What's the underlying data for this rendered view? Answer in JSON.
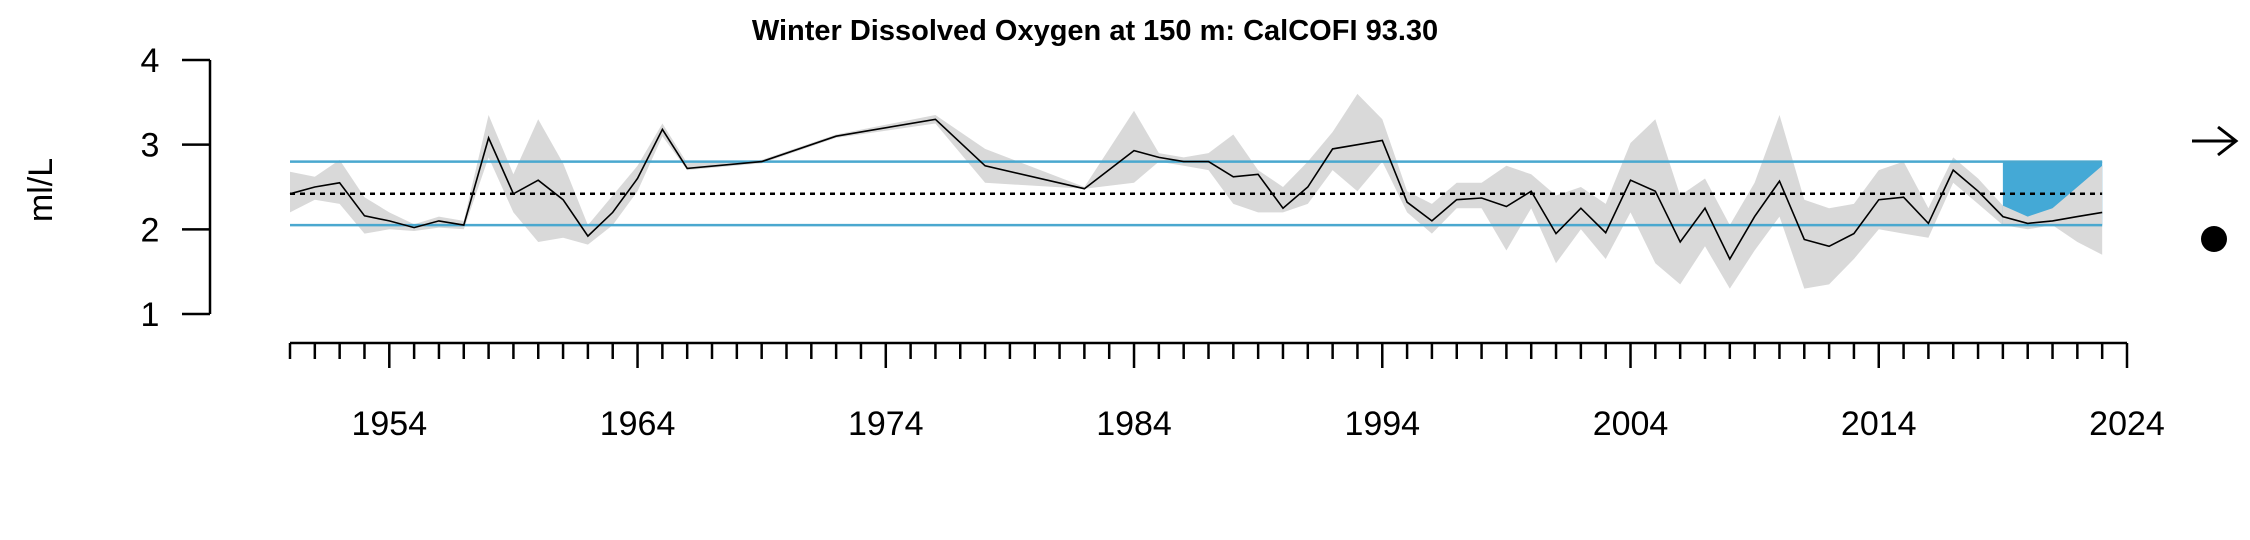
{
  "chart_data": {
    "type": "line",
    "title": "Winter Dissolved Oxygen at 150 m: CalCOFI 93.30",
    "ylabel": "ml/L",
    "xlabel": "",
    "xlim": [
      1950,
      2024
    ],
    "ylim": [
      1,
      4
    ],
    "y_ticks": [
      1,
      2,
      3,
      4
    ],
    "x_tick_labels": [
      1954,
      1964,
      1974,
      1984,
      1994,
      2004,
      2014,
      2024
    ],
    "mean": 2.42,
    "sd_band": [
      2.05,
      2.8
    ],
    "recent_period_shading": [
      2019,
      2023
    ],
    "trend_indicator": "right-arrow",
    "mean_indicator": "filled-circle",
    "colors": {
      "line": "#000000",
      "uncertainty": "#d9d9d9",
      "sd_lines": "#4aa8cf",
      "recent_fill": "#44a9d6",
      "mean_line": "#000000"
    },
    "series": [
      {
        "x": [
          1950,
          1951,
          1952,
          1953,
          1954,
          1955,
          1956,
          1957,
          1958,
          1959,
          1960,
          1961,
          1962,
          1963,
          1964,
          1965,
          1966,
          1969,
          1972,
          1976,
          1978,
          1982,
          1984,
          1985,
          1986,
          1987,
          1988,
          1989,
          1990,
          1991,
          1992,
          1993,
          1994,
          1995,
          1996,
          1997,
          1998,
          1999,
          2000,
          2001,
          2002,
          2003,
          2004,
          2005,
          2006,
          2007,
          2008,
          2009,
          2010,
          2011,
          2012,
          2013,
          2014,
          2015,
          2016,
          2017,
          2018,
          2019,
          2020,
          2021,
          2022,
          2023
        ],
        "y": [
          2.42,
          2.5,
          2.55,
          2.16,
          2.1,
          2.02,
          2.1,
          2.05,
          3.08,
          2.42,
          2.58,
          2.35,
          1.92,
          2.2,
          2.6,
          3.18,
          2.72,
          2.8,
          3.1,
          3.3,
          2.75,
          2.48,
          2.93,
          2.85,
          2.8,
          2.8,
          2.62,
          2.65,
          2.25,
          2.5,
          2.95,
          3.0,
          3.05,
          2.32,
          2.1,
          2.35,
          2.37,
          2.27,
          2.45,
          1.95,
          2.25,
          1.96,
          2.58,
          2.45,
          1.85,
          2.25,
          1.65,
          2.15,
          2.57,
          1.88,
          1.8,
          1.95,
          2.35,
          2.38,
          2.07,
          2.7,
          2.45,
          2.15,
          2.07,
          2.1,
          2.15,
          2.2
        ],
        "err_low": [
          2.2,
          2.35,
          2.3,
          1.95,
          2.0,
          1.98,
          2.02,
          2.0,
          2.85,
          2.2,
          1.85,
          1.9,
          1.82,
          2.05,
          2.45,
          3.1,
          2.7,
          2.78,
          3.08,
          3.25,
          2.55,
          2.48,
          2.55,
          2.8,
          2.75,
          2.7,
          2.3,
          2.2,
          2.2,
          2.3,
          2.7,
          2.45,
          2.8,
          2.2,
          1.95,
          2.25,
          2.25,
          1.75,
          2.25,
          1.6,
          2.0,
          1.65,
          2.2,
          1.6,
          1.35,
          1.8,
          1.3,
          1.75,
          2.15,
          1.3,
          1.35,
          1.65,
          2.0,
          1.95,
          1.9,
          2.55,
          2.3,
          2.05,
          2.0,
          2.05,
          1.85,
          1.7
        ],
        "err_high": [
          2.68,
          2.62,
          2.82,
          2.38,
          2.2,
          2.06,
          2.15,
          2.1,
          3.35,
          2.65,
          3.3,
          2.78,
          2.05,
          2.4,
          2.75,
          3.25,
          2.78,
          2.82,
          3.12,
          3.35,
          2.95,
          2.5,
          3.4,
          2.9,
          2.85,
          2.9,
          3.12,
          2.7,
          2.5,
          2.8,
          3.15,
          3.6,
          3.3,
          2.45,
          2.3,
          2.55,
          2.55,
          2.75,
          2.65,
          2.4,
          2.5,
          2.3,
          3.02,
          3.3,
          2.4,
          2.6,
          2.05,
          2.55,
          3.35,
          2.35,
          2.25,
          2.3,
          2.7,
          2.8,
          2.25,
          2.85,
          2.6,
          2.28,
          2.15,
          2.25,
          2.5,
          2.75
        ]
      }
    ]
  }
}
